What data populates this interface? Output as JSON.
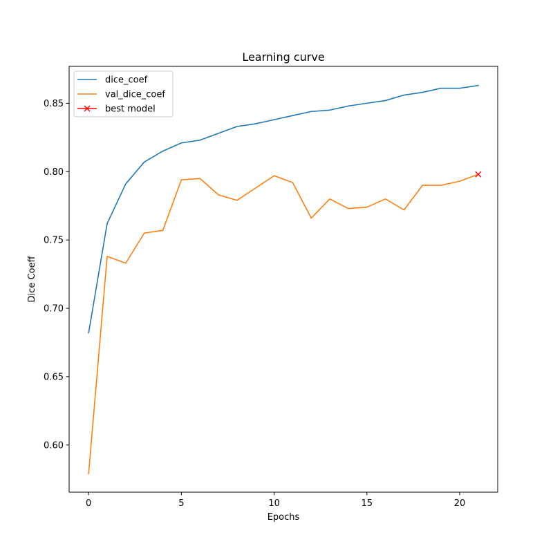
{
  "chart_data": {
    "type": "line",
    "title": "Learning curve",
    "xlabel": "Epochs",
    "ylabel": "Dice Coeff",
    "xlim": [
      -1.05,
      22.05
    ],
    "ylim": [
      0.5655,
      0.877
    ],
    "xticks": [
      0,
      5,
      10,
      15,
      20
    ],
    "xtick_labels": [
      "0",
      "5",
      "10",
      "15",
      "20"
    ],
    "yticks": [
      0.6,
      0.65,
      0.7,
      0.75,
      0.8,
      0.85
    ],
    "ytick_labels": [
      "0.60",
      "0.65",
      "0.70",
      "0.75",
      "0.80",
      "0.85"
    ],
    "grid": false,
    "legend_position": "top-left",
    "x": [
      0,
      1,
      2,
      3,
      4,
      5,
      6,
      7,
      8,
      9,
      10,
      11,
      12,
      13,
      14,
      15,
      16,
      17,
      18,
      19,
      20,
      21
    ],
    "series": [
      {
        "name": "dice_coef",
        "color": "#1f77b4",
        "values": [
          0.682,
          0.762,
          0.791,
          0.807,
          0.815,
          0.821,
          0.823,
          0.828,
          0.833,
          0.835,
          0.838,
          0.841,
          0.844,
          0.845,
          0.848,
          0.85,
          0.852,
          0.856,
          0.858,
          0.861,
          0.861,
          0.863
        ]
      },
      {
        "name": "val_dice_coef",
        "color": "#ff7f0e",
        "values": [
          0.579,
          0.738,
          0.733,
          0.755,
          0.757,
          0.794,
          0.795,
          0.783,
          0.779,
          0.788,
          0.797,
          0.792,
          0.766,
          0.78,
          0.773,
          0.774,
          0.78,
          0.772,
          0.79,
          0.79,
          0.793,
          0.798
        ]
      }
    ],
    "markers": [
      {
        "name": "best model",
        "color": "#ff0000",
        "marker": "x",
        "x": 21,
        "y": 0.798
      }
    ]
  }
}
